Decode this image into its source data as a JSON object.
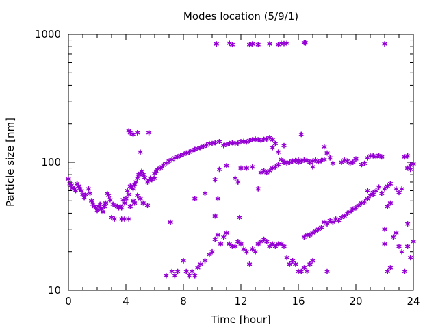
{
  "chart_data": {
    "type": "scatter",
    "title": "Modes location (5/9/1)",
    "xlabel": "Time [hour]",
    "ylabel": "Particle size [nm]",
    "xlim": [
      0,
      24
    ],
    "ylim": [
      10,
      1000
    ],
    "y_scale": "log",
    "x_ticks": [
      0,
      4,
      8,
      12,
      16,
      20,
      24
    ],
    "x_tick_labels": [
      "0",
      "4",
      "8",
      "12",
      "16",
      "20",
      "24"
    ],
    "y_ticks": [
      10,
      100,
      1000
    ],
    "y_tick_labels": [
      "10",
      "100",
      "1000"
    ],
    "grid": false,
    "legend": "none",
    "marker": "asterisk",
    "marker_color": "#9400D3",
    "series": [
      {
        "points": [
          [
            0.0,
            74
          ],
          [
            0.1,
            68
          ],
          [
            0.2,
            66
          ],
          [
            0.3,
            63
          ],
          [
            0.4,
            62
          ],
          [
            0.5,
            60
          ],
          [
            0.6,
            68
          ],
          [
            0.7,
            65
          ],
          [
            0.8,
            62
          ],
          [
            0.9,
            60
          ],
          [
            1.0,
            56
          ],
          [
            1.1,
            53
          ],
          [
            1.2,
            56
          ],
          [
            1.4,
            62
          ],
          [
            1.5,
            57
          ],
          [
            1.6,
            50
          ],
          [
            1.7,
            47
          ],
          [
            1.8,
            45
          ],
          [
            1.9,
            44
          ],
          [
            2.0,
            42
          ],
          [
            2.1,
            45
          ],
          [
            2.2,
            47
          ],
          [
            2.3,
            43
          ],
          [
            2.4,
            41
          ],
          [
            2.5,
            45
          ],
          [
            2.6,
            48
          ],
          [
            2.7,
            57
          ],
          [
            2.8,
            55
          ],
          [
            2.9,
            51
          ],
          [
            3.0,
            37
          ],
          [
            3.1,
            47
          ],
          [
            3.2,
            36
          ],
          [
            3.3,
            46
          ],
          [
            3.4,
            45
          ],
          [
            3.5,
            44
          ],
          [
            3.6,
            45
          ],
          [
            3.7,
            44
          ],
          [
            3.8,
            51
          ],
          [
            3.9,
            48
          ],
          [
            4.0,
            52
          ],
          [
            4.1,
            60
          ],
          [
            4.2,
            56
          ],
          [
            4.3,
            65
          ],
          [
            4.4,
            64
          ],
          [
            4.5,
            62
          ],
          [
            4.6,
            67
          ],
          [
            4.7,
            70
          ],
          [
            4.8,
            75
          ],
          [
            4.9,
            80
          ],
          [
            5.0,
            82
          ],
          [
            5.1,
            85
          ],
          [
            5.2,
            80
          ],
          [
            5.3,
            76
          ],
          [
            5.5,
            70
          ],
          [
            5.6,
            72
          ],
          [
            5.7,
            75
          ],
          [
            5.8,
            73
          ],
          [
            5.9,
            75
          ],
          [
            6.0,
            82
          ],
          [
            6.1,
            85
          ],
          [
            6.2,
            88
          ],
          [
            6.4,
            90
          ],
          [
            6.5,
            92
          ],
          [
            6.6,
            95
          ],
          [
            6.8,
            98
          ],
          [
            7.0,
            102
          ],
          [
            7.2,
            105
          ],
          [
            7.4,
            108
          ],
          [
            7.6,
            110
          ],
          [
            7.8,
            113
          ],
          [
            8.0,
            115
          ],
          [
            8.2,
            118
          ],
          [
            8.4,
            120
          ],
          [
            8.6,
            123
          ],
          [
            8.8,
            126
          ],
          [
            9.0,
            128
          ],
          [
            9.2,
            130
          ],
          [
            9.4,
            133
          ],
          [
            9.6,
            136
          ],
          [
            9.8,
            140
          ],
          [
            10.0,
            140
          ],
          [
            10.2,
            142
          ],
          [
            10.5,
            145
          ],
          [
            10.8,
            135
          ],
          [
            11.0,
            138
          ],
          [
            11.2,
            140
          ],
          [
            11.4,
            142
          ],
          [
            11.6,
            140
          ],
          [
            11.8,
            141
          ],
          [
            12.0,
            145
          ],
          [
            12.2,
            146
          ],
          [
            12.4,
            144
          ],
          [
            12.6,
            148
          ],
          [
            12.8,
            150
          ],
          [
            13.0,
            152
          ],
          [
            13.2,
            150
          ],
          [
            13.4,
            148
          ],
          [
            13.6,
            151
          ],
          [
            13.8,
            152
          ],
          [
            14.0,
            156
          ],
          [
            14.2,
            150
          ],
          [
            14.4,
            140
          ],
          [
            14.6,
            120
          ],
          [
            14.8,
            105
          ],
          [
            15.0,
            100
          ],
          [
            15.2,
            98
          ],
          [
            15.4,
            100
          ],
          [
            15.6,
            102
          ],
          [
            15.8,
            103
          ],
          [
            16.0,
            104
          ],
          [
            16.2,
            102
          ],
          [
            16.4,
            104
          ],
          [
            16.6,
            103
          ],
          [
            16.8,
            100
          ],
          [
            17.0,
            102
          ],
          [
            17.2,
            104
          ],
          [
            17.4,
            101
          ],
          [
            17.6,
            103
          ],
          [
            17.8,
            105
          ],
          [
            18.0,
            118
          ],
          [
            18.2,
            108
          ],
          [
            18.4,
            98
          ],
          [
            19.0,
            100
          ],
          [
            19.2,
            104
          ],
          [
            19.4,
            102
          ],
          [
            19.6,
            98
          ],
          [
            19.8,
            100
          ],
          [
            20.0,
            106
          ],
          [
            20.4,
            96
          ],
          [
            20.6,
            98
          ],
          [
            20.8,
            108
          ],
          [
            21.0,
            112
          ],
          [
            21.2,
            112
          ],
          [
            21.4,
            110
          ],
          [
            21.6,
            113
          ],
          [
            21.8,
            110
          ],
          [
            22.0,
            62
          ],
          [
            22.2,
            65
          ],
          [
            22.4,
            68
          ],
          [
            22.8,
            62
          ],
          [
            23.0,
            58
          ],
          [
            23.2,
            62
          ],
          [
            23.4,
            110
          ],
          [
            23.6,
            112
          ],
          [
            23.8,
            95
          ],
          [
            24.0,
            97
          ],
          [
            23.6,
            90
          ],
          [
            23.8,
            88
          ]
        ]
      },
      {
        "points": [
          [
            3.7,
            36
          ],
          [
            3.9,
            36
          ],
          [
            4.2,
            36
          ],
          [
            4.3,
            45
          ],
          [
            4.5,
            50
          ],
          [
            4.6,
            48
          ],
          [
            4.8,
            55
          ],
          [
            5.0,
            52
          ],
          [
            5.2,
            48
          ],
          [
            5.5,
            46
          ],
          [
            7.1,
            34
          ],
          [
            8.8,
            52
          ],
          [
            9.5,
            57
          ],
          [
            10.2,
            73
          ],
          [
            10.5,
            88
          ],
          [
            11.0,
            94
          ],
          [
            11.6,
            75
          ],
          [
            11.8,
            70
          ],
          [
            12.0,
            90
          ],
          [
            12.4,
            90
          ],
          [
            12.8,
            92
          ],
          [
            13.2,
            62
          ],
          [
            13.4,
            83
          ],
          [
            13.6,
            86
          ],
          [
            13.8,
            83
          ],
          [
            14.0,
            86
          ],
          [
            14.2,
            90
          ],
          [
            14.4,
            92
          ],
          [
            14.6,
            96
          ],
          [
            15.0,
            100
          ],
          [
            16.0,
            100
          ],
          [
            17.0,
            92
          ],
          [
            18.4,
            98
          ]
        ]
      },
      {
        "points": [
          [
            6.8,
            13
          ],
          [
            7.2,
            14
          ],
          [
            7.4,
            13
          ],
          [
            7.6,
            14
          ],
          [
            8.0,
            17
          ],
          [
            8.2,
            14
          ],
          [
            8.4,
            13
          ],
          [
            8.6,
            14
          ],
          [
            8.8,
            13
          ],
          [
            9.0,
            15
          ],
          [
            9.2,
            16
          ],
          [
            9.5,
            17
          ],
          [
            9.8,
            19
          ],
          [
            10.0,
            20
          ],
          [
            10.2,
            25
          ],
          [
            10.4,
            27
          ],
          [
            10.6,
            23
          ],
          [
            10.8,
            26
          ],
          [
            11.0,
            28
          ],
          [
            11.2,
            23
          ],
          [
            11.4,
            22
          ],
          [
            11.6,
            22
          ],
          [
            11.8,
            24
          ],
          [
            12.0,
            23
          ],
          [
            12.2,
            21
          ],
          [
            12.4,
            20
          ],
          [
            12.6,
            16
          ],
          [
            12.8,
            21
          ],
          [
            13.0,
            20
          ],
          [
            13.2,
            23
          ],
          [
            13.4,
            24
          ],
          [
            13.6,
            25
          ],
          [
            13.8,
            24
          ],
          [
            14.0,
            22
          ],
          [
            14.2,
            23
          ],
          [
            14.4,
            22
          ],
          [
            14.6,
            23
          ],
          [
            14.8,
            23
          ],
          [
            15.0,
            22
          ],
          [
            15.2,
            18
          ],
          [
            15.4,
            16
          ],
          [
            15.6,
            17
          ],
          [
            15.8,
            16
          ],
          [
            16.0,
            14
          ],
          [
            16.2,
            14
          ],
          [
            16.4,
            15
          ],
          [
            16.6,
            14
          ],
          [
            16.8,
            16
          ],
          [
            17.0,
            17
          ],
          [
            18.0,
            14
          ],
          [
            16.4,
            26
          ],
          [
            16.6,
            27
          ],
          [
            16.8,
            27
          ],
          [
            17.0,
            28
          ],
          [
            17.2,
            29
          ],
          [
            17.4,
            30
          ],
          [
            17.6,
            31
          ],
          [
            17.8,
            34
          ],
          [
            18.0,
            33
          ],
          [
            18.2,
            35
          ],
          [
            18.4,
            34
          ],
          [
            18.6,
            36
          ],
          [
            18.8,
            35
          ],
          [
            19.0,
            37
          ],
          [
            19.2,
            38
          ],
          [
            19.4,
            40
          ],
          [
            19.6,
            41
          ],
          [
            19.8,
            43
          ],
          [
            20.0,
            44
          ],
          [
            20.2,
            46
          ],
          [
            20.4,
            48
          ],
          [
            20.6,
            49
          ],
          [
            20.8,
            52
          ],
          [
            21.0,
            55
          ],
          [
            21.2,
            56
          ],
          [
            21.4,
            60
          ],
          [
            21.6,
            64
          ],
          [
            21.8,
            57
          ],
          [
            22.0,
            23
          ],
          [
            22.2,
            14
          ],
          [
            22.4,
            15
          ],
          [
            22.6,
            26
          ],
          [
            22.8,
            28
          ],
          [
            23.0,
            22
          ],
          [
            23.2,
            20
          ],
          [
            23.4,
            14
          ],
          [
            23.6,
            22
          ],
          [
            23.8,
            18
          ],
          [
            24.0,
            24
          ],
          [
            23.6,
            33
          ],
          [
            10.2,
            38
          ],
          [
            10.4,
            52
          ],
          [
            11.9,
            37
          ],
          [
            20.8,
            60
          ],
          [
            21.2,
            58
          ],
          [
            22.0,
            30
          ],
          [
            22.2,
            45
          ],
          [
            22.4,
            48
          ]
        ]
      },
      {
        "points": [
          [
            4.2,
            176
          ],
          [
            4.3,
            170
          ],
          [
            4.5,
            165
          ],
          [
            4.8,
            170
          ],
          [
            5.0,
            120
          ],
          [
            5.6,
            170
          ],
          [
            6.0,
            75
          ],
          [
            10.3,
            840
          ],
          [
            11.2,
            850
          ],
          [
            11.4,
            830
          ],
          [
            12.6,
            830
          ],
          [
            12.8,
            840
          ],
          [
            13.2,
            830
          ],
          [
            14.0,
            840
          ],
          [
            14.6,
            830
          ],
          [
            14.8,
            850
          ],
          [
            15.0,
            845
          ],
          [
            15.2,
            850
          ],
          [
            16.4,
            860
          ],
          [
            16.5,
            855
          ],
          [
            22.0,
            840
          ],
          [
            16.2,
            165
          ],
          [
            15.0,
            135
          ],
          [
            14.2,
            130
          ],
          [
            17.8,
            132
          ]
        ]
      }
    ]
  }
}
